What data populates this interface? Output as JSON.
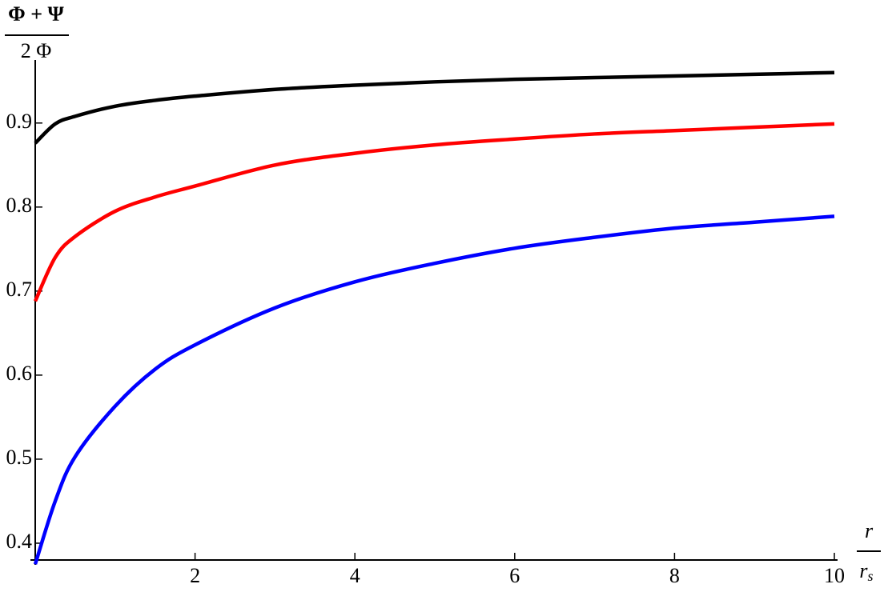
{
  "chart_data": {
    "type": "line",
    "y_label": {
      "numerator": "Φ + Ψ",
      "denominator": "2 Φ"
    },
    "x_label": {
      "numerator": "r",
      "denominator": "r",
      "denominator_subscript": "s"
    },
    "x": [
      0,
      0.25,
      0.5,
      1,
      1.5,
      2,
      3,
      4,
      5,
      6,
      7,
      8,
      9,
      10
    ],
    "series": [
      {
        "color": "#000000",
        "values": [
          0.876,
          0.899,
          0.908,
          0.92,
          0.927,
          0.932,
          0.94,
          0.945,
          0.949,
          0.952,
          0.954,
          0.956,
          0.958,
          0.96
        ]
      },
      {
        "color": "#ff0000",
        "values": [
          0.688,
          0.74,
          0.765,
          0.795,
          0.812,
          0.825,
          0.85,
          0.864,
          0.874,
          0.881,
          0.887,
          0.891,
          0.895,
          0.899
        ]
      },
      {
        "color": "#0000ff",
        "values": [
          0.375,
          0.45,
          0.503,
          0.563,
          0.607,
          0.636,
          0.68,
          0.711,
          0.733,
          0.751,
          0.764,
          0.775,
          0.782,
          0.789
        ]
      }
    ],
    "xlim": [
      0,
      10
    ],
    "ylim": [
      0.38,
      0.975
    ],
    "xticks": [
      2,
      4,
      6,
      8,
      10
    ],
    "yticks": [
      0.4,
      0.5,
      0.6,
      0.7,
      0.8,
      0.9
    ],
    "grid": false
  }
}
